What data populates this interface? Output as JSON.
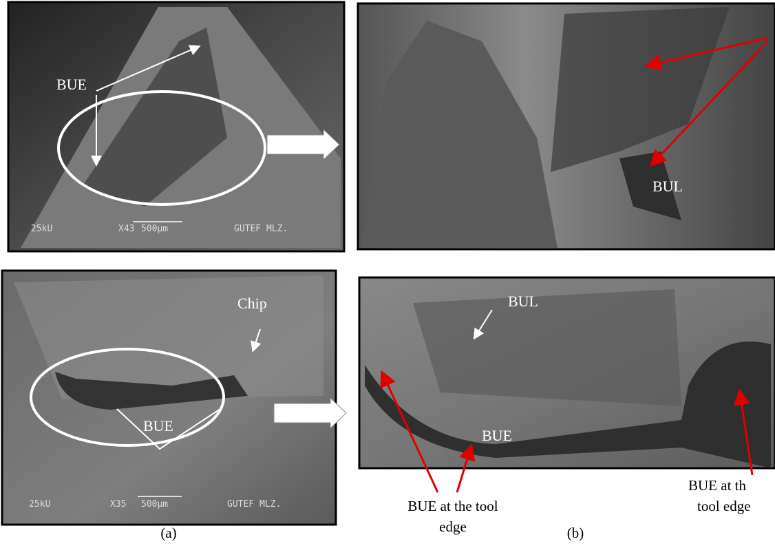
{
  "top_left": {
    "label": "BUE",
    "voltage": "25kU",
    "magnification": "X43",
    "scale": "500µm",
    "lab": "GUTEF MLZ."
  },
  "top_right": {
    "label": "BUL"
  },
  "bottom_left": {
    "chip": "Chip",
    "label": "BUE",
    "voltage": "25kU",
    "magnification": "X35",
    "scale": "500µm",
    "lab": "GUTEF MLZ."
  },
  "bottom_right": {
    "bul": "BUL",
    "bue": "BUE"
  },
  "captions": {
    "left_callout": [
      "BUE at the tool",
      "edge"
    ],
    "right_callout": [
      "BUE at th",
      "tool edge"
    ],
    "a": "(a)",
    "b": "(b)"
  }
}
